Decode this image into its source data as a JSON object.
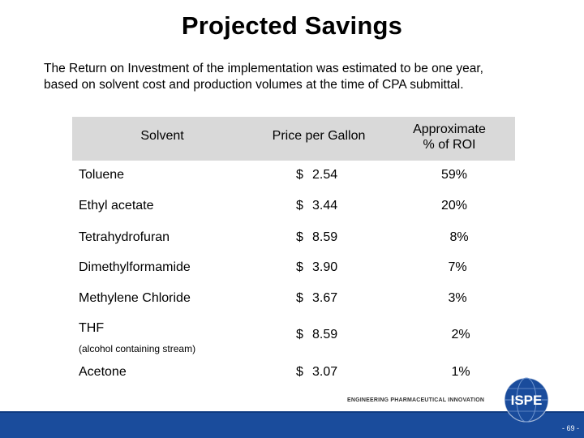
{
  "slide": {
    "title": "Projected Savings",
    "intro_line1": "The Return on Investment of the implementation was estimated to be one year,",
    "intro_line2": "based on solvent cost and production volumes at the time of CPA submittal."
  },
  "table": {
    "headers": {
      "solvent": "Solvent",
      "price": "Price per Gallon",
      "roi_line1": "Approximate",
      "roi_line2": "% of ROI"
    },
    "rows": [
      {
        "solvent": "Toluene",
        "note": "",
        "currency": "$",
        "price": "2.54",
        "roi": "59%"
      },
      {
        "solvent": "Ethyl acetate",
        "note": "",
        "currency": "$",
        "price": "3.44",
        "roi": "20%"
      },
      {
        "solvent": "Tetrahydrofuran",
        "note": "",
        "currency": "$",
        "price": "8.59",
        "roi": "8%"
      },
      {
        "solvent": "Dimethylformamide",
        "note": "",
        "currency": "$",
        "price": "3.90",
        "roi": "7%"
      },
      {
        "solvent": "Methylene Chloride",
        "note": "",
        "currency": "$",
        "price": "3.67",
        "roi": "3%"
      },
      {
        "solvent": "THF",
        "note": "(alcohol containing stream)",
        "currency": "$",
        "price": "8.59",
        "roi": "2%"
      },
      {
        "solvent": "Acetone",
        "note": "",
        "currency": "$",
        "price": "3.07",
        "roi": "1%"
      }
    ]
  },
  "footer": {
    "tagline": "ENGINEERING PHARMACEUTICAL INNOVATION",
    "logo_text": "ISPE",
    "page_number": "- 69 -",
    "bar_color": "#1a4c9c"
  }
}
